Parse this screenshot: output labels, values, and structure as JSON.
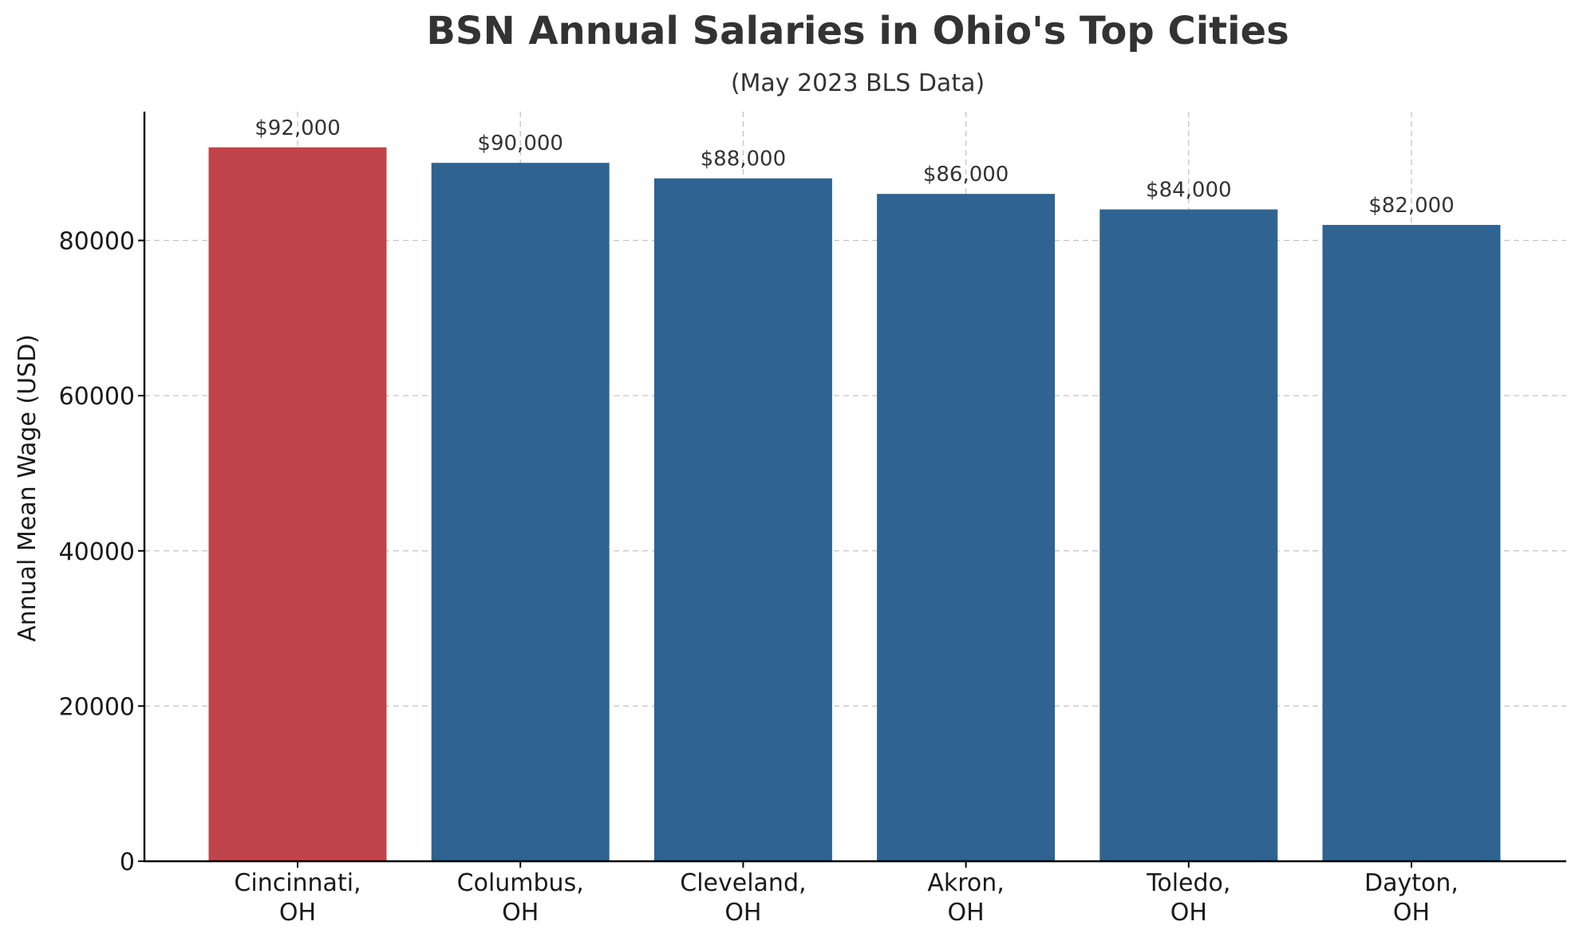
{
  "chart_data": {
    "type": "bar",
    "title": "BSN Annual Salaries in Ohio's Top Cities",
    "subtitle": "(May 2023 BLS Data)",
    "xlabel": "",
    "ylabel": "Annual Mean Wage (USD)",
    "categories": [
      [
        "Cincinnati,",
        "OH"
      ],
      [
        "Columbus,",
        "OH"
      ],
      [
        "Cleveland,",
        "OH"
      ],
      [
        "Akron,",
        "OH"
      ],
      [
        "Toledo,",
        "OH"
      ],
      [
        "Dayton,",
        "OH"
      ]
    ],
    "values": [
      92000,
      90000,
      88000,
      86000,
      84000,
      82000
    ],
    "value_labels": [
      "$92,000",
      "$90,000",
      "$88,000",
      "$86,000",
      "$84,000",
      "$82,000"
    ],
    "bar_colors": [
      "#c0454a",
      "#2e6392",
      "#2e6392",
      "#2e6392",
      "#2e6392",
      "#2e6392"
    ],
    "ylim": [
      0,
      96600
    ],
    "yticks": [
      0,
      20000,
      40000,
      60000,
      80000
    ],
    "ytick_labels": [
      "0",
      "20000",
      "40000",
      "60000",
      "80000"
    ],
    "grid": true,
    "legend": "none"
  }
}
